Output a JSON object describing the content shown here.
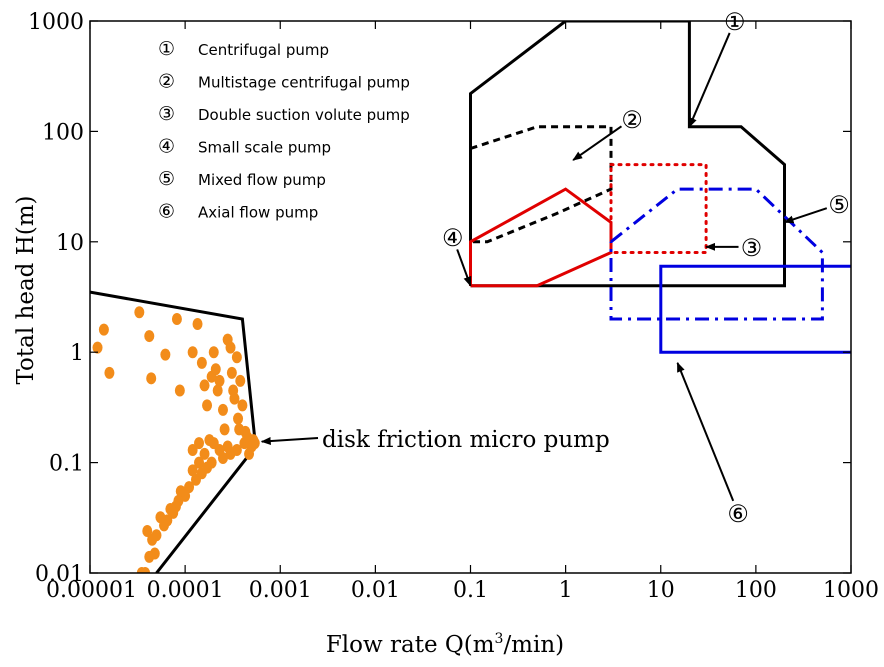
{
  "chart_data": {
    "type": "scatter",
    "xlabel": "Flow rate Q(m",
    "xlabel_sup": "3",
    "xlabel_tail": "/min)",
    "ylabel": "Total head H(m)",
    "xscale": "log",
    "yscale": "log",
    "xlim": [
      1e-05,
      1000
    ],
    "ylim": [
      0.01,
      1000
    ],
    "xticks": [
      1e-05,
      0.0001,
      0.001,
      0.01,
      0.1,
      1,
      10,
      100,
      1000
    ],
    "xtick_labels": [
      "0.00001",
      "0.0001",
      "0.001",
      "0.01",
      "0.1",
      "1",
      "10",
      "100",
      "1000"
    ],
    "yticks": [
      0.01,
      0.1,
      1,
      10,
      100,
      1000
    ],
    "ytick_labels": [
      "0.01",
      "0.1",
      "1",
      "10",
      "100",
      "1000"
    ],
    "grid": false,
    "legend_position": "top-left",
    "legend": [
      {
        "marker": "①",
        "label": "Centrifugal pump"
      },
      {
        "marker": "②",
        "label": "Multistage centrifugal pump"
      },
      {
        "marker": "③",
        "label": "Double suction volute  pump"
      },
      {
        "marker": "④",
        "label": "Small scale pump"
      },
      {
        "marker": "⑤",
        "label": "Mixed flow pump"
      },
      {
        "marker": "⑥",
        "label": "Axial flow pump"
      }
    ],
    "regions": [
      {
        "id": "①",
        "color": "#000000",
        "style": "solid",
        "points": [
          [
            0.1,
            4
          ],
          [
            0.1,
            220
          ],
          [
            1,
            1000
          ],
          [
            20,
            1000
          ],
          [
            20,
            110
          ],
          [
            70,
            110
          ],
          [
            200,
            50
          ],
          [
            200,
            4
          ],
          [
            0.1,
            4
          ]
        ]
      },
      {
        "id": "②",
        "color": "#000000",
        "style": "dashed",
        "points": [
          [
            0.1,
            70
          ],
          [
            0.5,
            110
          ],
          [
            3,
            110
          ],
          [
            3,
            30
          ],
          [
            0.8,
            18
          ],
          [
            0.15,
            10
          ],
          [
            0.1,
            10
          ]
        ]
      },
      {
        "id": "③",
        "color": "#e00000",
        "style": "dotted",
        "points": [
          [
            3,
            50
          ],
          [
            30,
            50
          ],
          [
            30,
            8
          ],
          [
            3,
            8
          ],
          [
            3,
            50
          ]
        ]
      },
      {
        "id": "④",
        "color": "#e00000",
        "style": "solid",
        "points": [
          [
            0.1,
            4
          ],
          [
            0.1,
            10
          ],
          [
            1,
            30
          ],
          [
            3,
            15
          ],
          [
            3,
            8
          ],
          [
            0.5,
            4
          ],
          [
            0.1,
            4
          ]
        ]
      },
      {
        "id": "⑤",
        "color": "#0000e0",
        "style": "dashdot",
        "points": [
          [
            3,
            10
          ],
          [
            15,
            30
          ],
          [
            100,
            30
          ],
          [
            500,
            8
          ],
          [
            500,
            2
          ],
          [
            3,
            2
          ],
          [
            3,
            10
          ]
        ]
      },
      {
        "id": "⑥",
        "color": "#0000e0",
        "style": "solid",
        "points": [
          [
            1000,
            6
          ],
          [
            10,
            6
          ],
          [
            10,
            1
          ],
          [
            1000,
            1
          ]
        ]
      },
      {
        "id": "micro",
        "color": "#000000",
        "style": "solid",
        "points": [
          [
            1e-05,
            3.5
          ],
          [
            0.0004,
            2
          ],
          [
            0.00055,
            0.14
          ],
          [
            5e-05,
            0.01
          ]
        ]
      }
    ],
    "callouts": [
      {
        "label": "①",
        "text_at": [
          60,
          1000
        ],
        "arrow_to": [
          20,
          110
        ]
      },
      {
        "label": "②",
        "text_at": [
          5,
          130
        ],
        "arrow_to": [
          1.2,
          55
        ]
      },
      {
        "label": "③",
        "text_at": [
          90,
          9
        ],
        "arrow_to": [
          30,
          9
        ]
      },
      {
        "label": "④",
        "text_at": [
          0.065,
          11
        ],
        "arrow_to": [
          0.1,
          4
        ]
      },
      {
        "label": "⑤",
        "text_at": [
          750,
          22
        ],
        "arrow_to": [
          200,
          15
        ]
      },
      {
        "label": "⑥",
        "text_at": [
          65,
          0.035
        ],
        "arrow_to": [
          15,
          0.8
        ]
      }
    ],
    "annotation": {
      "text": "disk friction micro pump",
      "arrow_to": [
        0.00058,
        0.155
      ]
    },
    "series": [
      {
        "color": "#f28c1a",
        "points": [
          [
            1.2e-05,
            1.1
          ],
          [
            1.4e-05,
            1.6
          ],
          [
            1.6e-05,
            0.65
          ],
          [
            3.3e-05,
            2.3
          ],
          [
            4.2e-05,
            1.4
          ],
          [
            4.4e-05,
            0.58
          ],
          [
            6.2e-05,
            0.95
          ],
          [
            8.2e-05,
            2.0
          ],
          [
            8.8e-05,
            0.45
          ],
          [
            0.00012,
            1.0
          ],
          [
            0.000135,
            1.8
          ],
          [
            0.00015,
            0.8
          ],
          [
            0.00016,
            0.5
          ],
          [
            0.00017,
            0.33
          ],
          [
            0.00019,
            0.6
          ],
          [
            0.0002,
            1.0
          ],
          [
            0.00021,
            0.7
          ],
          [
            0.00022,
            0.45
          ],
          [
            0.00023,
            0.55
          ],
          [
            0.00025,
            0.3
          ],
          [
            0.00028,
            1.3
          ],
          [
            0.0003,
            1.1
          ],
          [
            0.00031,
            0.65
          ],
          [
            0.00032,
            0.45
          ],
          [
            0.00033,
            0.38
          ],
          [
            0.00035,
            0.9
          ],
          [
            0.00036,
            0.25
          ],
          [
            0.00038,
            0.55
          ],
          [
            0.0004,
            0.33
          ],
          [
            0.00042,
            0.15
          ],
          [
            0.00045,
            0.17
          ],
          [
            0.00048,
            0.16
          ],
          [
            0.0005,
            0.14
          ],
          [
            0.00052,
            0.16
          ],
          [
            0.00054,
            0.15
          ],
          [
            0.00035,
            0.13
          ],
          [
            0.0003,
            0.12
          ],
          [
            0.00028,
            0.14
          ],
          [
            0.00025,
            0.11
          ],
          [
            0.00023,
            0.13
          ],
          [
            0.0002,
            0.15
          ],
          [
            0.00019,
            0.1
          ],
          [
            0.00018,
            0.16
          ],
          [
            0.00017,
            0.09
          ],
          [
            0.00016,
            0.12
          ],
          [
            0.00015,
            0.08
          ],
          [
            0.00014,
            0.1
          ],
          [
            0.00013,
            0.07
          ],
          [
            0.00012,
            0.085
          ],
          [
            0.00011,
            0.06
          ],
          [
            0.0001,
            0.05
          ],
          [
            9e-05,
            0.055
          ],
          [
            8.5e-05,
            0.045
          ],
          [
            8e-05,
            0.04
          ],
          [
            7.5e-05,
            0.035
          ],
          [
            7e-05,
            0.038
          ],
          [
            6.5e-05,
            0.03
          ],
          [
            6e-05,
            0.027
          ],
          [
            5.5e-05,
            0.032
          ],
          [
            5e-05,
            0.022
          ],
          [
            4.8e-05,
            0.015
          ],
          [
            4.5e-05,
            0.02
          ],
          [
            4.2e-05,
            0.014
          ],
          [
            4e-05,
            0.024
          ],
          [
            3.8e-05,
            0.01
          ],
          [
            3.5e-05,
            0.01
          ],
          [
            0.00012,
            0.13
          ],
          [
            0.00014,
            0.15
          ],
          [
            0.00026,
            0.2
          ],
          [
            0.00037,
            0.2
          ],
          [
            0.00043,
            0.19
          ],
          [
            0.00047,
            0.12
          ]
        ]
      }
    ]
  }
}
